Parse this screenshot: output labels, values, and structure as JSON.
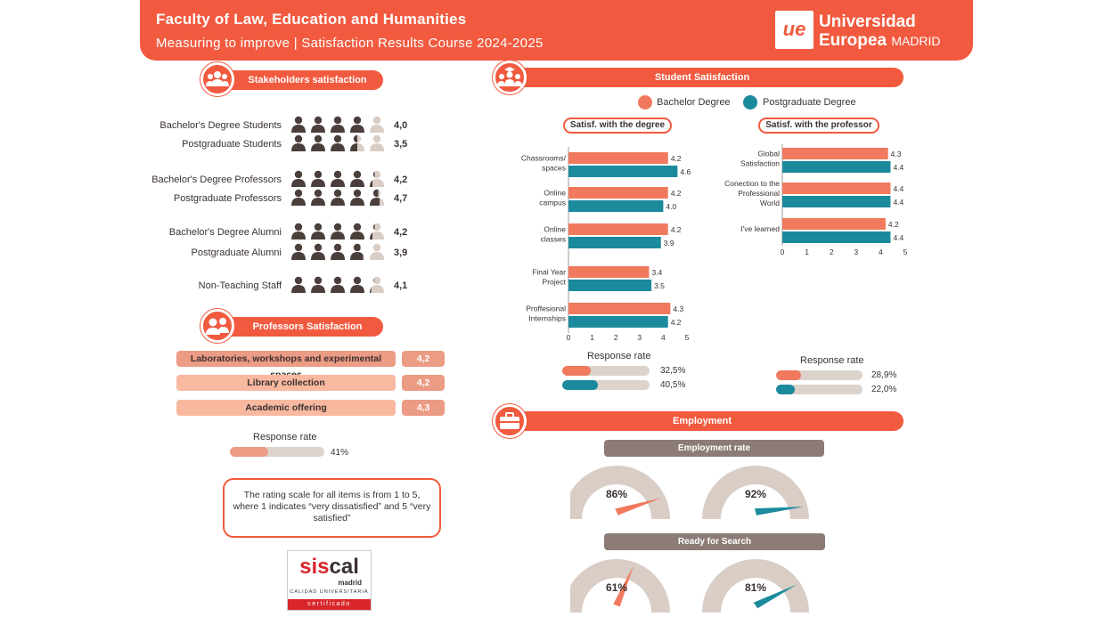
{
  "header": {
    "title": "Faculty of Law, Education and Humanities",
    "subtitle": "Measuring to improve | Satisfaction Results Course 2024-2025",
    "logo_mark": "ue",
    "logo_name_1": "Universidad",
    "logo_name_2": "Europea",
    "logo_name_3": "MADRID"
  },
  "colors": {
    "accent": "#f15a3f",
    "bachelor": "#f0795e",
    "postgraduate": "#1b8a9c",
    "person_dark": "#4b3f3c",
    "person_light": "#d9cdc6",
    "track": "#dcd3cc",
    "gray_pill": "#8c7b76"
  },
  "stakeholders": {
    "title": "Stakeholders satisfaction",
    "icon": "people-group-icon",
    "rows": [
      {
        "label": "Bachelor's Degree Students",
        "value": "4,0",
        "score": 4.0
      },
      {
        "label": "Postgraduate Students",
        "value": "3,5",
        "score": 3.5
      },
      {
        "label": "Bachelor's Degree Professors",
        "value": "4,2",
        "score": 4.2
      },
      {
        "label": "Postgraduate Professors",
        "value": "4,7",
        "score": 4.7
      },
      {
        "label": "Bachelor's Degree Alumni",
        "value": "4,2",
        "score": 4.2
      },
      {
        "label": "Postgraduate Alumni",
        "value": "3,9",
        "score": 3.9
      },
      {
        "label": "Non-Teaching Staff",
        "value": "4,1",
        "score": 4.1
      }
    ]
  },
  "professors": {
    "title": "Professors Satisfaction",
    "icon": "professors-icon",
    "items": [
      {
        "label": "Laboratories, workshops and experimental spaces",
        "value": "4,2"
      },
      {
        "label": "Library collection",
        "value": "4,2"
      },
      {
        "label": "Academic offering",
        "value": "4,3"
      }
    ],
    "response_rate_label": "Response rate",
    "response_rate": "41%",
    "response_rate_fraction": 0.41
  },
  "note": "The rating scale for all items is from 1 to 5, where 1 indicates “very dissatisfied” and 5 “very satisfied”",
  "siscal": {
    "sis": "sis",
    "cal": "cal",
    "madrid": "madrid",
    "calidad": "CALIDAD UNIVERSITARIA",
    "cert": "certificado"
  },
  "student": {
    "title": "Student Satisfaction",
    "icon": "students-icon",
    "legend": [
      "Bachelor Degree",
      "Postgraduate Degree"
    ],
    "degree_title": "Satisf. with the degree",
    "professor_title": "Satisf. with the professor",
    "response_rate_label": "Response rate",
    "degree_response": [
      {
        "value": "32,5%",
        "fraction": 0.325
      },
      {
        "value": "40,5%",
        "fraction": 0.405
      }
    ],
    "professor_response": [
      {
        "value": "28,9%",
        "fraction": 0.289
      },
      {
        "value": "22,0%",
        "fraction": 0.22
      }
    ]
  },
  "employment": {
    "title": "Employment",
    "icon": "briefcase-icon",
    "rate_title": "Employment rate",
    "search_title": "Ready for Search",
    "rate": [
      {
        "label": "86%",
        "value": 86
      },
      {
        "label": "92%",
        "value": 92
      }
    ],
    "search": [
      {
        "label": "61%",
        "value": 61
      },
      {
        "label": "81%",
        "value": 81
      }
    ]
  },
  "chart_data": [
    {
      "type": "bar",
      "orientation": "horizontal",
      "title": "Satisf. with the degree",
      "categories": [
        "Chassrooms/ spaces",
        "Online campus",
        "Online classes",
        "Final Year Project",
        "Proffesional Internships"
      ],
      "series": [
        {
          "name": "Bachelor Degree",
          "values": [
            4.2,
            4.2,
            4.2,
            3.4,
            4.3
          ]
        },
        {
          "name": "Postgraduate Degree",
          "values": [
            4.6,
            4.0,
            3.9,
            3.5,
            4.2
          ]
        }
      ],
      "value_labels": {
        "Bachelor Degree": [
          "4.2",
          "4.2",
          "4.2",
          "3.4",
          "4.3"
        ],
        "Postgraduate Degree": [
          "4.6",
          "4.0",
          "3.9",
          "3.5",
          "4.2"
        ]
      },
      "xlim": [
        0,
        5
      ],
      "ticks": [
        "0",
        "1",
        "2",
        "3",
        "4",
        "5"
      ]
    },
    {
      "type": "bar",
      "orientation": "horizontal",
      "title": "Satisf. with the professor",
      "categories": [
        "Global Satisfaction",
        "Conection to the Professional World",
        "I've learned"
      ],
      "series": [
        {
          "name": "Bachelor Degree",
          "values": [
            4.3,
            4.4,
            4.2
          ]
        },
        {
          "name": "Postgraduate Degree",
          "values": [
            4.4,
            4.4,
            4.4
          ]
        }
      ],
      "value_labels": {
        "Bachelor Degree": [
          "4.3",
          "4.4",
          "4.2"
        ],
        "Postgraduate Degree": [
          "4.4",
          "4.4",
          "4.4"
        ]
      },
      "xlim": [
        0,
        5
      ],
      "ticks": [
        "0",
        "1",
        "2",
        "3",
        "4",
        "5"
      ]
    }
  ]
}
